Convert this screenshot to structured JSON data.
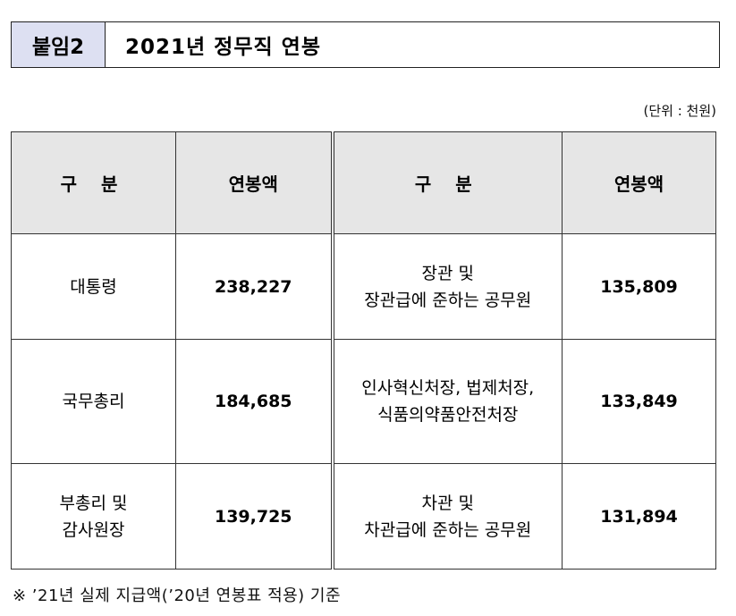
{
  "title": {
    "tag": "붙임2",
    "text": "2021년 정무직 연봉"
  },
  "unit_note": "(단위 : 천원)",
  "table": {
    "headers": [
      "구 분",
      "연봉액",
      "구 분",
      "연봉액"
    ],
    "rows": [
      {
        "left_name": [
          "대통령"
        ],
        "left_amount": "238,227",
        "right_name": [
          "장관 및",
          "장관급에 준하는 공무원"
        ],
        "right_amount": "135,809"
      },
      {
        "left_name": [
          "국무총리"
        ],
        "left_amount": "184,685",
        "right_name": [
          "인사혁신처장, 법제처장,",
          "식품의약품안전처장"
        ],
        "right_amount": "133,849"
      },
      {
        "left_name": [
          "부총리 및",
          "감사원장"
        ],
        "left_amount": "139,725",
        "right_name": [
          "차관 및",
          "차관급에 준하는 공무원"
        ],
        "right_amount": "131,894"
      }
    ]
  },
  "footnote": "※ ’21년 실제 지급액(’20년 연봉표 적용) 기준",
  "colors": {
    "tag_background": "#dde0f2",
    "header_background": "#e6e6e6"
  }
}
